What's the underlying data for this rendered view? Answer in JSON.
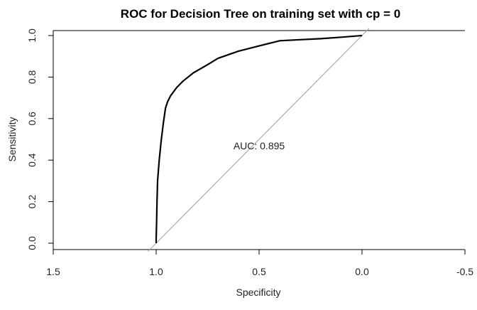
{
  "chart_data": {
    "type": "line",
    "title": "ROC for Decision Tree on training set with cp = 0",
    "xlabel": "Specificity",
    "ylabel": "Sensitivity",
    "x_reversed": true,
    "xlim": [
      1.5,
      -0.5
    ],
    "ylim": [
      0.0,
      1.0
    ],
    "x_ticks": [
      1.5,
      1.0,
      0.5,
      0.0,
      -0.5
    ],
    "x_tick_labels": [
      "1.5",
      "1.0",
      "0.5",
      "0.0",
      "-0.5"
    ],
    "y_ticks": [
      0.0,
      0.2,
      0.4,
      0.6,
      0.8,
      1.0
    ],
    "y_tick_labels": [
      "0.0",
      "0.2",
      "0.4",
      "0.6",
      "0.8",
      "1.0"
    ],
    "grid": false,
    "legend": "none",
    "diagonal_reference": true,
    "annotation": {
      "text": "AUC: 0.895",
      "x": 0.5,
      "y": 0.47
    },
    "colors": {
      "curve": "#000000",
      "diagonal": "#a0a0a0",
      "axes": "#000000"
    },
    "series": [
      {
        "values": [
          {
            "x": 1.0,
            "y": 0.0
          },
          {
            "x": 1.0,
            "y": 0.02
          },
          {
            "x": 0.998,
            "y": 0.1
          },
          {
            "x": 0.996,
            "y": 0.2
          },
          {
            "x": 0.993,
            "y": 0.3
          },
          {
            "x": 0.985,
            "y": 0.4
          },
          {
            "x": 0.975,
            "y": 0.5
          },
          {
            "x": 0.965,
            "y": 0.58
          },
          {
            "x": 0.955,
            "y": 0.65
          },
          {
            "x": 0.945,
            "y": 0.68
          },
          {
            "x": 0.93,
            "y": 0.71
          },
          {
            "x": 0.9,
            "y": 0.75
          },
          {
            "x": 0.87,
            "y": 0.78
          },
          {
            "x": 0.82,
            "y": 0.82
          },
          {
            "x": 0.75,
            "y": 0.86
          },
          {
            "x": 0.7,
            "y": 0.89
          },
          {
            "x": 0.6,
            "y": 0.925
          },
          {
            "x": 0.5,
            "y": 0.95
          },
          {
            "x": 0.4,
            "y": 0.975
          },
          {
            "x": 0.3,
            "y": 0.98
          },
          {
            "x": 0.2,
            "y": 0.985
          },
          {
            "x": 0.1,
            "y": 0.992
          },
          {
            "x": 0.0,
            "y": 1.0
          }
        ]
      }
    ]
  }
}
